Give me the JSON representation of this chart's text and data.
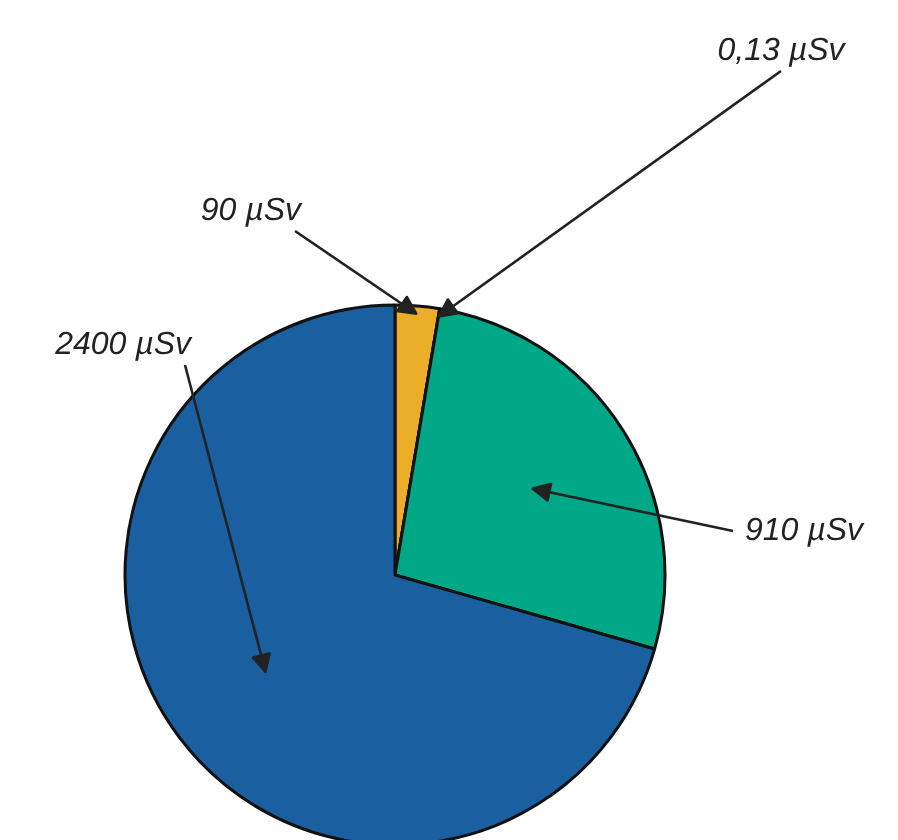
{
  "chart_data": {
    "type": "pie",
    "categories": [
      null,
      null,
      null,
      null
    ],
    "values": [
      90,
      0.13,
      910,
      2400
    ],
    "colors": [
      "#eaae28",
      "#e0301e",
      "#00a887",
      "#1a5fa0"
    ],
    "value_labels": [
      "90 µSv",
      "0,13 µSv",
      "910 µSv",
      "2400 µSv"
    ]
  }
}
